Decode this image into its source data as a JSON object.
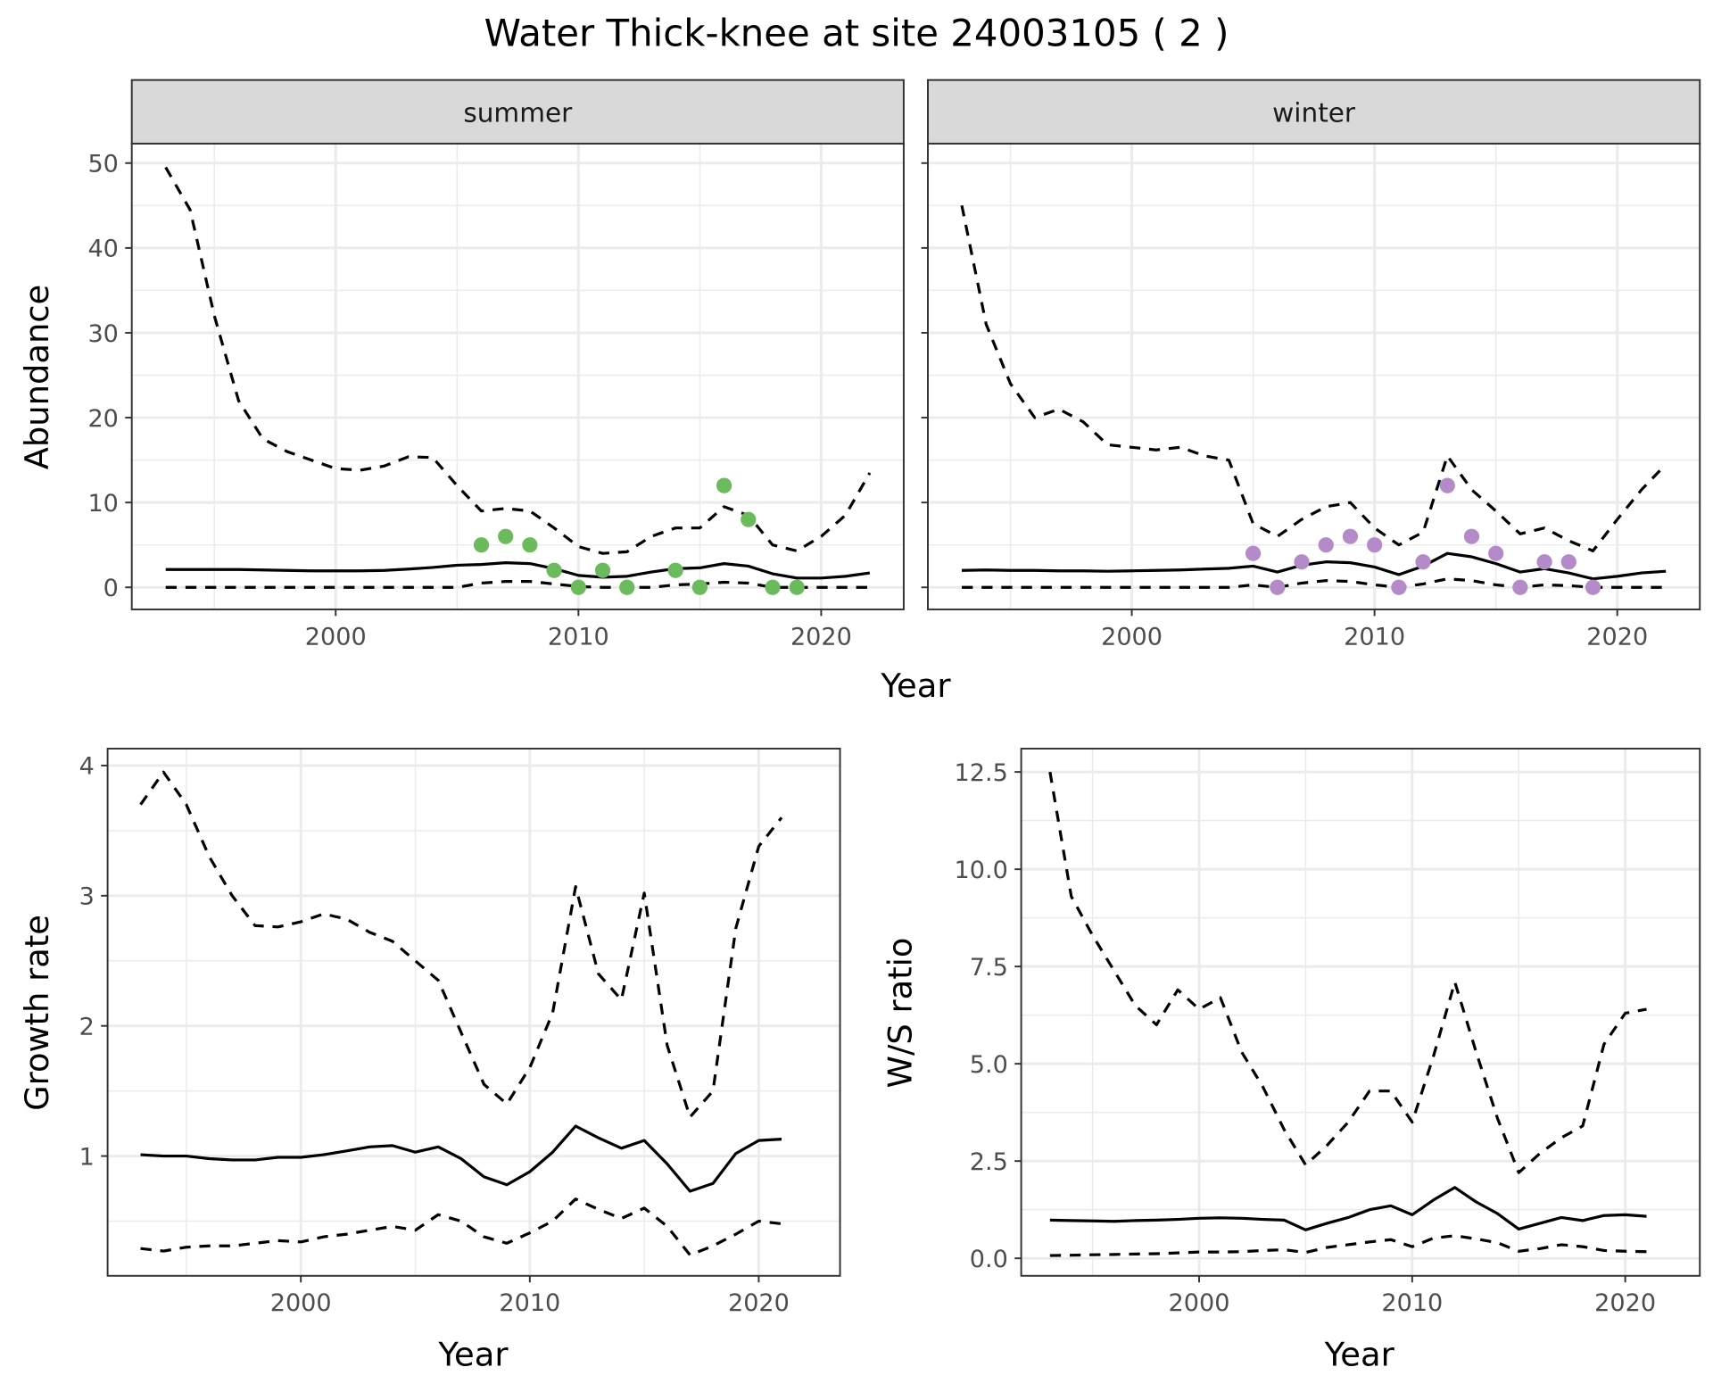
{
  "title": "Water Thick-knee at site 24003105 ( 2 )",
  "chart_data": [
    {
      "type": "line",
      "xlabel": "Year",
      "ylabel": "Abundance",
      "xlim": [
        1991.6,
        2023.4
      ],
      "ylim": [
        -2.6,
        52.3
      ],
      "xticks": [
        "2000",
        "2010",
        "2020"
      ],
      "yticks": [
        "0",
        "10",
        "20",
        "30",
        "40",
        "50"
      ],
      "grid": true,
      "facets": [
        {
          "label": "summer",
          "point_color": "#6BBA5B",
          "x": [
            1993,
            1994,
            1995,
            1996,
            1997,
            1998,
            1999,
            2000,
            2001,
            2002,
            2003,
            2004,
            2005,
            2006,
            2007,
            2008,
            2009,
            2010,
            2011,
            2012,
            2013,
            2014,
            2015,
            2016,
            2017,
            2018,
            2019,
            2020,
            2021,
            2022
          ],
          "series": [
            {
              "line": "dashed",
              "values": [
                49.5,
                44.5,
                32,
                22,
                17.5,
                16,
                15,
                14,
                13.8,
                14.3,
                15.4,
                15.3,
                12,
                9,
                9.3,
                9,
                7,
                4.8,
                4,
                4.2,
                6,
                7,
                7,
                9.5,
                8.5,
                5,
                4.3,
                6,
                8.5,
                13.5
              ]
            },
            {
              "line": "solid",
              "values": [
                2.1,
                2.1,
                2.1,
                2.1,
                2.05,
                2.0,
                1.95,
                1.95,
                1.95,
                2.0,
                2.15,
                2.35,
                2.6,
                2.7,
                2.9,
                2.8,
                2.2,
                1.4,
                1.2,
                1.3,
                1.8,
                2.2,
                2.3,
                2.8,
                2.5,
                1.6,
                1.1,
                1.1,
                1.3,
                1.7
              ]
            },
            {
              "line": "dashed",
              "values": [
                0,
                0,
                0,
                0,
                0,
                0,
                0,
                0,
                0,
                0,
                0,
                0,
                0,
                0.5,
                0.7,
                0.7,
                0.4,
                0.1,
                0,
                0,
                0,
                0.3,
                0.4,
                0.6,
                0.5,
                0,
                0,
                0,
                0,
                0
              ]
            }
          ],
          "points": {
            "x": [
              2006,
              2007,
              2008,
              2009,
              2010,
              2011,
              2012,
              2014,
              2015,
              2016,
              2017,
              2018,
              2019
            ],
            "y": [
              5,
              6,
              5,
              2,
              0,
              2,
              0,
              2,
              0,
              12,
              8,
              0,
              0
            ]
          }
        },
        {
          "label": "winter",
          "point_color": "#B48AC8",
          "x": [
            1993,
            1994,
            1995,
            1996,
            1997,
            1998,
            1999,
            2000,
            2001,
            2002,
            2003,
            2004,
            2005,
            2006,
            2007,
            2008,
            2009,
            2010,
            2011,
            2012,
            2013,
            2014,
            2015,
            2016,
            2017,
            2018,
            2019,
            2020,
            2021,
            2022
          ],
          "series": [
            {
              "line": "dashed",
              "values": [
                45,
                31,
                24,
                20,
                21,
                19.5,
                16.8,
                16.5,
                16.2,
                16.5,
                15.5,
                15,
                7.5,
                6,
                8,
                9.5,
                10,
                7,
                5,
                6.5,
                15.5,
                11.5,
                9,
                6.3,
                7,
                5.5,
                4.3,
                8,
                11.5,
                14.5
              ]
            },
            {
              "line": "solid",
              "values": [
                2.0,
                2.05,
                2.0,
                2.0,
                1.95,
                1.95,
                1.9,
                1.95,
                2.0,
                2.05,
                2.15,
                2.25,
                2.5,
                1.8,
                2.6,
                3.0,
                2.9,
                2.4,
                1.5,
                2.5,
                4.0,
                3.6,
                2.8,
                1.8,
                2.2,
                1.7,
                1.0,
                1.3,
                1.7,
                1.9
              ]
            },
            {
              "line": "dashed",
              "values": [
                0,
                0,
                0,
                0,
                0,
                0,
                0,
                0,
                0,
                0,
                0,
                0,
                0.3,
                0,
                0.5,
                0.8,
                0.7,
                0.3,
                0,
                0.4,
                1.0,
                0.8,
                0.3,
                0,
                0.3,
                0.2,
                0,
                0,
                0,
                0
              ]
            }
          ],
          "points": {
            "x": [
              2005,
              2006,
              2007,
              2008,
              2009,
              2010,
              2011,
              2012,
              2013,
              2014,
              2015,
              2016,
              2017,
              2018,
              2019
            ],
            "y": [
              4,
              0,
              3,
              5,
              6,
              5,
              0,
              3,
              12,
              6,
              4,
              0,
              3,
              3,
              0
            ]
          }
        }
      ]
    },
    {
      "type": "line",
      "xlabel": "Year",
      "ylabel": "Growth rate",
      "xlim": [
        1991.56,
        2023.55
      ],
      "ylim": [
        0.08,
        4.13
      ],
      "xticks": [
        "2000",
        "2010",
        "2020"
      ],
      "yticks": [
        "1",
        "2",
        "3",
        "4"
      ],
      "grid": true,
      "x": [
        1993,
        1994,
        1995,
        1996,
        1997,
        1998,
        1999,
        2000,
        2001,
        2002,
        2003,
        2004,
        2005,
        2006,
        2007,
        2008,
        2009,
        2010,
        2011,
        2012,
        2013,
        2014,
        2015,
        2016,
        2017,
        2018,
        2019,
        2020,
        2021
      ],
      "series": [
        {
          "line": "dashed",
          "values": [
            3.7,
            3.95,
            3.7,
            3.3,
            3.0,
            2.77,
            2.76,
            2.8,
            2.86,
            2.82,
            2.72,
            2.65,
            2.5,
            2.35,
            1.95,
            1.55,
            1.4,
            1.68,
            2.1,
            3.07,
            2.4,
            2.2,
            3.02,
            1.85,
            1.3,
            1.5,
            2.75,
            3.38,
            3.6
          ]
        },
        {
          "line": "solid",
          "values": [
            1.01,
            1.0,
            1.0,
            0.98,
            0.97,
            0.97,
            0.99,
            0.99,
            1.01,
            1.04,
            1.07,
            1.08,
            1.03,
            1.07,
            0.98,
            0.84,
            0.78,
            0.88,
            1.03,
            1.23,
            1.14,
            1.06,
            1.12,
            0.94,
            0.73,
            0.79,
            1.02,
            1.12,
            1.13
          ]
        },
        {
          "line": "dashed",
          "values": [
            0.29,
            0.27,
            0.3,
            0.31,
            0.31,
            0.33,
            0.35,
            0.34,
            0.38,
            0.4,
            0.43,
            0.46,
            0.43,
            0.55,
            0.5,
            0.38,
            0.33,
            0.41,
            0.5,
            0.67,
            0.59,
            0.52,
            0.6,
            0.46,
            0.24,
            0.31,
            0.4,
            0.5,
            0.48
          ]
        }
      ]
    },
    {
      "type": "line",
      "xlabel": "Year",
      "ylabel": "W/S ratio",
      "xlim": [
        1991.65,
        2023.5
      ],
      "ylim": [
        -0.45,
        13.1
      ],
      "xticks": [
        "2000",
        "2010",
        "2020"
      ],
      "yticks": [
        "0.0",
        "2.5",
        "5.0",
        "7.5",
        "10.0",
        "12.5"
      ],
      "grid": true,
      "x": [
        1993,
        1994,
        1995,
        1996,
        1997,
        1998,
        1999,
        2000,
        2001,
        2002,
        2003,
        2004,
        2005,
        2006,
        2007,
        2008,
        2009,
        2010,
        2011,
        2012,
        2013,
        2014,
        2015,
        2016,
        2017,
        2018,
        2019,
        2020,
        2021
      ],
      "series": [
        {
          "line": "dashed",
          "values": [
            12.5,
            9.3,
            8.3,
            7.4,
            6.5,
            6.0,
            6.9,
            6.4,
            6.7,
            5.3,
            4.4,
            3.3,
            2.4,
            2.9,
            3.5,
            4.3,
            4.3,
            3.5,
            5.2,
            7.1,
            5.3,
            3.6,
            2.2,
            2.7,
            3.1,
            3.4,
            5.5,
            6.3,
            6.4
          ]
        },
        {
          "line": "solid",
          "values": [
            0.98,
            0.97,
            0.96,
            0.95,
            0.97,
            0.98,
            1.0,
            1.03,
            1.04,
            1.03,
            1.0,
            0.98,
            0.73,
            0.9,
            1.05,
            1.25,
            1.35,
            1.12,
            1.5,
            1.82,
            1.45,
            1.15,
            0.75,
            0.9,
            1.05,
            0.97,
            1.1,
            1.12,
            1.08
          ]
        },
        {
          "line": "dashed",
          "values": [
            0.07,
            0.08,
            0.09,
            0.1,
            0.11,
            0.12,
            0.14,
            0.16,
            0.16,
            0.17,
            0.2,
            0.22,
            0.15,
            0.28,
            0.35,
            0.42,
            0.48,
            0.3,
            0.52,
            0.58,
            0.5,
            0.4,
            0.18,
            0.25,
            0.35,
            0.3,
            0.2,
            0.18,
            0.17
          ]
        }
      ]
    }
  ]
}
